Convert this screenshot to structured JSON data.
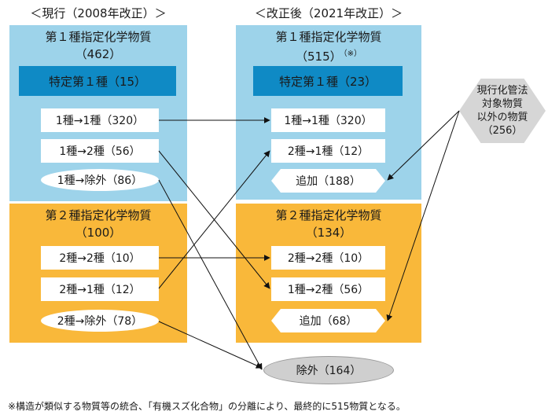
{
  "headings": {
    "left": "＜現行（2008年改正）＞",
    "right": "＜改正後（2021年改正）＞"
  },
  "left": {
    "class1": {
      "title": "第１種指定化学物質",
      "count": "（462）",
      "special": "特定第１種（15）",
      "items": [
        "1種→1種（320）",
        "1種→2種（56）",
        "1種→除外（86）"
      ]
    },
    "class2": {
      "title": "第２種指定化学物質",
      "count": "（100）",
      "items": [
        "2種→2種（10）",
        "2種→1種（12）",
        "2種→除外（78）"
      ]
    }
  },
  "right": {
    "class1": {
      "title": "第１種指定化学物質",
      "count": "（515）",
      "note_mark": "（※）",
      "special": "特定第１種（23）",
      "items": [
        "1種→1種（320）",
        "2種→1種（12）",
        "追加（188）"
      ]
    },
    "class2": {
      "title": "第２種指定化学物質",
      "count": "（134）",
      "items": [
        "2種→2種（10）",
        "1種→2種（56）",
        "追加（68）"
      ]
    }
  },
  "outside": {
    "lines": [
      "現行化管法",
      "対象物質",
      "以外の物質",
      "（256）"
    ]
  },
  "excluded": "除外（164）",
  "footnote": "※構造が類似する物質等の統合、「有機スズ化合物」の分離により、最終的に515物質となる。",
  "colors": {
    "class1_bg": "#9dd3ea",
    "class2_bg": "#f9b83a",
    "special_bg": "#0f8ac5",
    "excluded_bg": "#cfcfcf",
    "outside_bg": "#d6d6d6"
  }
}
